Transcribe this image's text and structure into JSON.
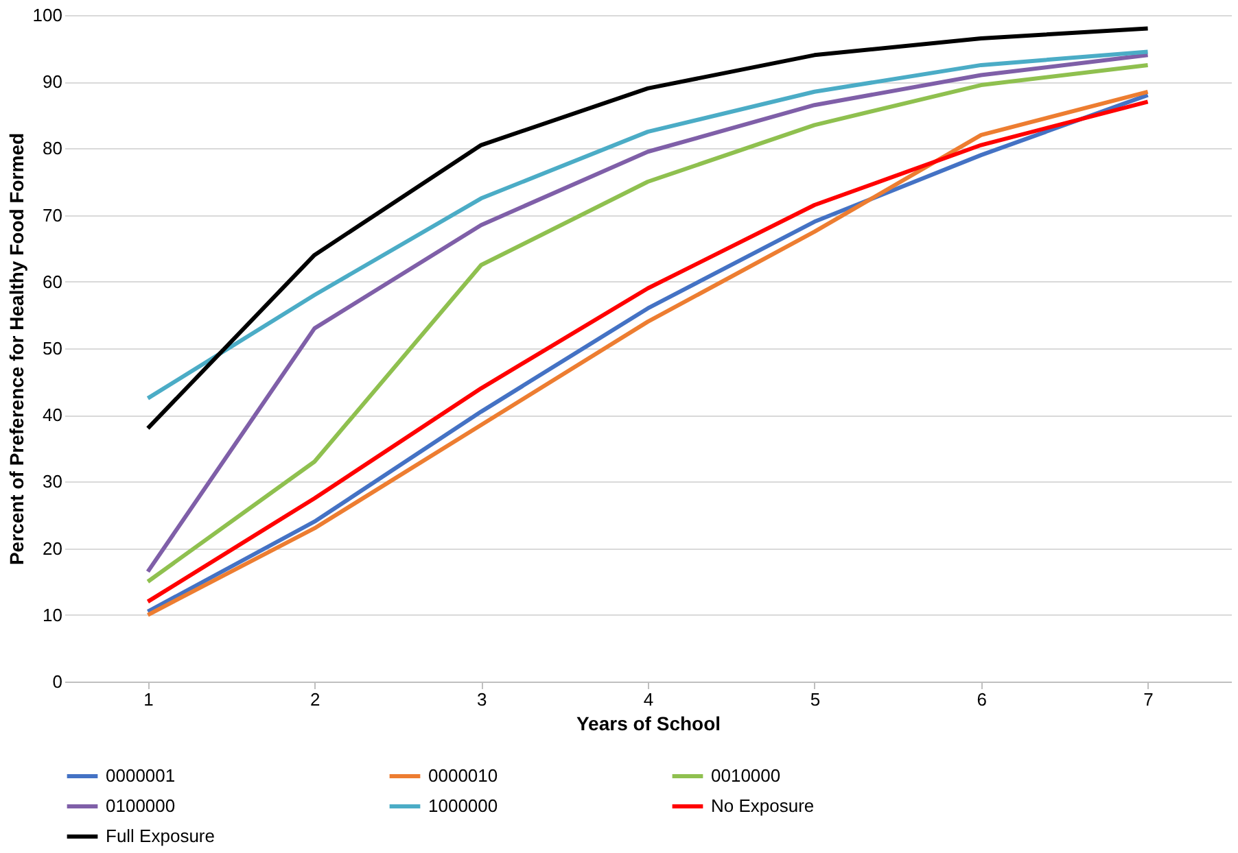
{
  "chart_data": {
    "type": "line",
    "xlabel": "Years of School",
    "ylabel": "Percent of Preference for Healthy Food Formed",
    "categories": [
      "1",
      "2",
      "3",
      "4",
      "5",
      "6",
      "7"
    ],
    "series": [
      {
        "name": "0000001",
        "color": "#4472c4",
        "values": [
          10.5,
          24,
          40.5,
          56,
          69,
          79,
          88
        ]
      },
      {
        "name": "0000010",
        "color": "#ed7d31",
        "values": [
          10,
          23,
          38.5,
          54,
          67.5,
          82,
          88.5
        ]
      },
      {
        "name": "0010000",
        "color": "#8fc04f",
        "values": [
          15,
          33,
          62.5,
          75,
          83.5,
          89.5,
          92.5
        ]
      },
      {
        "name": "0100000",
        "color": "#7f5fa8",
        "values": [
          16.5,
          53,
          68.5,
          79.5,
          86.5,
          91,
          94
        ]
      },
      {
        "name": "1000000",
        "color": "#4bacc6",
        "values": [
          42.5,
          58,
          72.5,
          82.5,
          88.5,
          92.5,
          94.5
        ]
      },
      {
        "name": "No Exposure",
        "color": "#ff0000",
        "values": [
          12,
          27.5,
          44,
          59,
          71.5,
          80.5,
          87
        ]
      },
      {
        "name": "Full Exposure",
        "color": "#000000",
        "values": [
          38,
          64,
          80.5,
          89,
          94,
          96.5,
          98
        ]
      }
    ],
    "ylim": [
      0,
      100
    ],
    "yticks": [
      0,
      10,
      20,
      30,
      40,
      50,
      60,
      70,
      80,
      90,
      100
    ],
    "grid": "y",
    "legend": "bottom",
    "marker": "none",
    "line_style": "solid"
  }
}
